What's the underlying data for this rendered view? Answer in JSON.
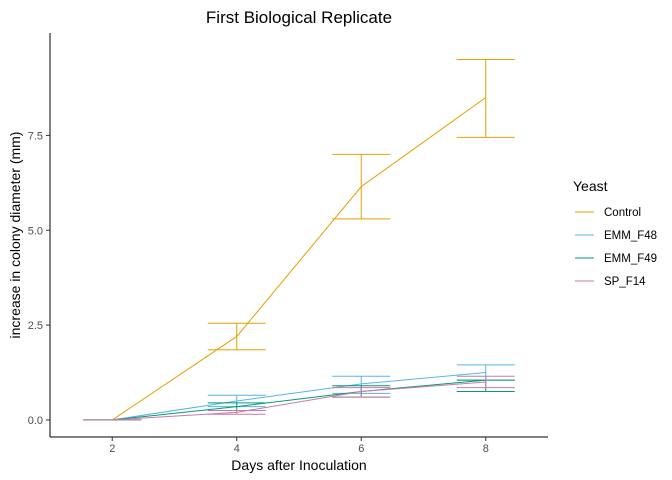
{
  "chart_data": {
    "type": "line",
    "title": "First Biological Replicate",
    "xlabel": "Days after Inoculation",
    "ylabel": "increase in colony diameter (mm)",
    "x": [
      2,
      4,
      6,
      8
    ],
    "xlim": [
      1,
      9
    ],
    "ylim": [
      -0.45,
      10.2
    ],
    "xticks": [
      2,
      4,
      6,
      8
    ],
    "yticks": [
      0.0,
      2.5,
      5.0,
      7.5
    ],
    "ytick_labels": [
      "0.0",
      "2.5",
      "5.0",
      "7.5"
    ],
    "grid": false,
    "legend": {
      "title": "Yeast",
      "placement": "right"
    },
    "series": [
      {
        "name": "Control",
        "color": "#E69F00",
        "values": [
          0.0,
          2.2,
          6.15,
          8.5
        ],
        "err_low": [
          0.0,
          1.85,
          5.3,
          7.45
        ],
        "err_high": [
          0.0,
          2.55,
          7.0,
          9.5
        ]
      },
      {
        "name": "EMM_F48",
        "color": "#56B4E9",
        "values": [
          0.0,
          0.5,
          0.95,
          1.25
        ],
        "err_low": [
          0.0,
          0.35,
          0.7,
          1.05
        ],
        "err_high": [
          0.0,
          0.65,
          1.15,
          1.45
        ]
      },
      {
        "name": "EMM_F49",
        "color": "#009E73",
        "values": [
          0.0,
          0.35,
          0.75,
          1.05
        ],
        "err_low": [
          0.0,
          0.25,
          0.6,
          0.75
        ],
        "err_high": [
          0.0,
          0.45,
          0.9,
          1.05
        ]
      },
      {
        "name": "SP_F14",
        "color": "#CC79A7",
        "values": [
          0.0,
          0.2,
          0.75,
          1.0
        ],
        "err_low": [
          0.0,
          0.15,
          0.6,
          0.85
        ],
        "err_high": [
          0.0,
          0.25,
          0.85,
          1.15
        ]
      }
    ]
  }
}
